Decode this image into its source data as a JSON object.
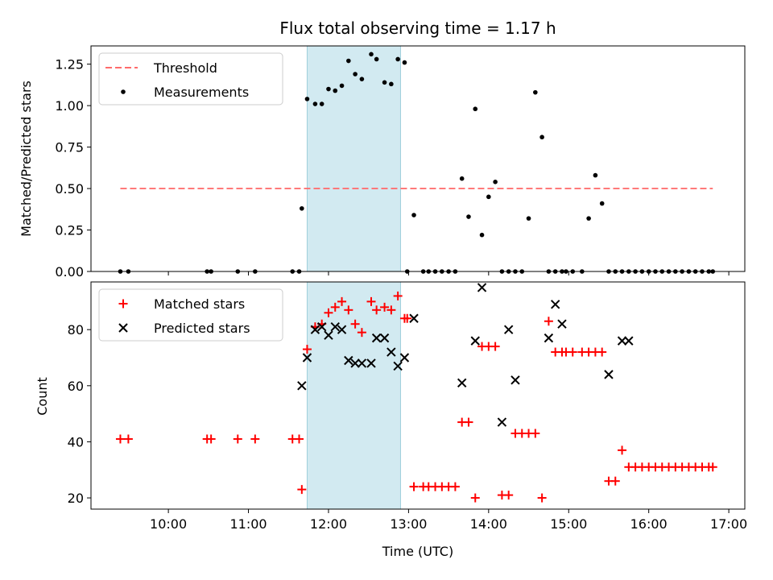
{
  "chart_data": [
    {
      "type": "scatter",
      "title": "Flux total observing time = 1.17 h",
      "xlabel": "",
      "ylabel": "Matched/Predicted stars",
      "xlim": [
        "09:02",
        "17:12"
      ],
      "ylim": [
        0,
        1.36
      ],
      "yticks": [
        "0.00",
        "0.25",
        "0.50",
        "0.75",
        "1.00",
        "1.25"
      ],
      "ytick_values": [
        0,
        0.25,
        0.5,
        0.75,
        1.0,
        1.25
      ],
      "legend_position": "upper-left",
      "highlight_span": [
        "11:44",
        "12:54"
      ],
      "highlight_color": "#add8e6",
      "series": [
        {
          "name": "Threshold",
          "kind": "dashed-line",
          "color": "#ff6b6b",
          "x": [
            "09:24",
            "16:48"
          ],
          "y": [
            0.5,
            0.5
          ]
        },
        {
          "name": "Measurements",
          "kind": "points",
          "color": "#000000",
          "x": [
            "09:24",
            "09:30",
            "10:29",
            "10:32",
            "10:52",
            "11:05",
            "11:33",
            "11:38",
            "11:40",
            "11:44",
            "11:50",
            "11:55",
            "12:00",
            "12:05",
            "12:10",
            "12:15",
            "12:20",
            "12:25",
            "12:32",
            "12:36",
            "12:42",
            "12:47",
            "12:52",
            "12:57",
            "12:59",
            "13:04",
            "13:11",
            "13:15",
            "13:20",
            "13:25",
            "13:30",
            "13:35",
            "13:40",
            "13:45",
            "13:50",
            "13:55",
            "14:00",
            "14:05",
            "14:10",
            "14:15",
            "14:20",
            "14:25",
            "14:30",
            "14:35",
            "14:40",
            "14:45",
            "14:50",
            "14:55",
            "14:58",
            "15:03",
            "15:10",
            "15:15",
            "15:20",
            "15:25",
            "15:30",
            "15:35",
            "15:40",
            "15:45",
            "15:50",
            "15:55",
            "16:00",
            "16:05",
            "16:10",
            "16:15",
            "16:20",
            "16:25",
            "16:30",
            "16:35",
            "16:40",
            "16:45",
            "16:48"
          ],
          "y": [
            0,
            0,
            0,
            0,
            0,
            0,
            0,
            0,
            0.38,
            1.04,
            1.01,
            1.01,
            1.1,
            1.09,
            1.12,
            1.27,
            1.19,
            1.16,
            1.31,
            1.28,
            1.14,
            1.13,
            1.28,
            1.26,
            0,
            0.34,
            0,
            0,
            0,
            0,
            0,
            0,
            0.56,
            0.33,
            0.98,
            0.22,
            0.45,
            0.54,
            0,
            0,
            0,
            0,
            0.32,
            1.08,
            0.81,
            0,
            0,
            0,
            0,
            0,
            0,
            0.32,
            0.58,
            0.41,
            0,
            0,
            0,
            0,
            0,
            0,
            0,
            0,
            0,
            0,
            0,
            0,
            0,
            0,
            0,
            0,
            0
          ]
        }
      ]
    },
    {
      "type": "scatter",
      "title": "",
      "xlabel": "Time (UTC)",
      "ylabel": "Count",
      "xlim": [
        "09:02",
        "17:12"
      ],
      "ylim": [
        16,
        97
      ],
      "yticks": [
        "20",
        "40",
        "60",
        "80"
      ],
      "ytick_values": [
        20,
        40,
        60,
        80
      ],
      "xticks": [
        "10:00",
        "11:00",
        "12:00",
        "13:00",
        "14:00",
        "15:00",
        "16:00",
        "17:00"
      ],
      "legend_position": "upper-left",
      "highlight_span": [
        "11:44",
        "12:54"
      ],
      "highlight_color": "#add8e6",
      "series": [
        {
          "name": "Matched stars",
          "kind": "plus",
          "color": "#ff0000",
          "x": [
            "09:24",
            "09:30",
            "10:29",
            "10:32",
            "10:52",
            "11:05",
            "11:33",
            "11:38",
            "11:40",
            "11:44",
            "11:50",
            "11:55",
            "12:00",
            "12:05",
            "12:10",
            "12:15",
            "12:20",
            "12:25",
            "12:32",
            "12:36",
            "12:42",
            "12:47",
            "12:52",
            "12:57",
            "12:59",
            "13:04",
            "13:11",
            "13:15",
            "13:20",
            "13:25",
            "13:30",
            "13:35",
            "13:40",
            "13:45",
            "13:50",
            "13:55",
            "14:00",
            "14:05",
            "14:10",
            "14:15",
            "14:20",
            "14:25",
            "14:30",
            "14:35",
            "14:40",
            "14:45",
            "14:50",
            "14:55",
            "14:58",
            "15:03",
            "15:10",
            "15:15",
            "15:20",
            "15:25",
            "15:30",
            "15:35",
            "15:40",
            "15:45",
            "15:50",
            "15:55",
            "16:00",
            "16:05",
            "16:10",
            "16:15",
            "16:20",
            "16:25",
            "16:30",
            "16:35",
            "16:40",
            "16:45",
            "16:48"
          ],
          "y": [
            41,
            41,
            41,
            41,
            41,
            41,
            41,
            41,
            23,
            73,
            81,
            82,
            86,
            88,
            90,
            87,
            82,
            79,
            90,
            87,
            88,
            87,
            92,
            84,
            84,
            24,
            24,
            24,
            24,
            24,
            24,
            24,
            47,
            47,
            20,
            74,
            74,
            74,
            21,
            21,
            43,
            43,
            43,
            43,
            20,
            83,
            72,
            72,
            72,
            72,
            72,
            72,
            72,
            72,
            26,
            26,
            37,
            31,
            31,
            31,
            31,
            31,
            31,
            31,
            31,
            31,
            31,
            31,
            31,
            31,
            31
          ]
        },
        {
          "name": "Predicted stars",
          "kind": "cross",
          "color": "#000000",
          "x": [
            "11:40",
            "11:44",
            "11:50",
            "11:55",
            "12:00",
            "12:05",
            "12:10",
            "12:15",
            "12:20",
            "12:25",
            "12:32",
            "12:36",
            "12:42",
            "12:47",
            "12:52",
            "12:57",
            "13:04",
            "13:40",
            "13:50",
            "13:55",
            "14:10",
            "14:15",
            "14:20",
            "14:45",
            "14:50",
            "14:55",
            "15:30",
            "15:40",
            "15:45"
          ],
          "y": [
            60,
            70,
            80,
            81,
            78,
            81,
            80,
            69,
            68,
            68,
            68,
            77,
            77,
            72,
            67,
            70,
            84,
            61,
            76,
            95,
            47,
            80,
            62,
            77,
            89,
            82,
            64,
            76,
            76
          ]
        }
      ]
    }
  ]
}
